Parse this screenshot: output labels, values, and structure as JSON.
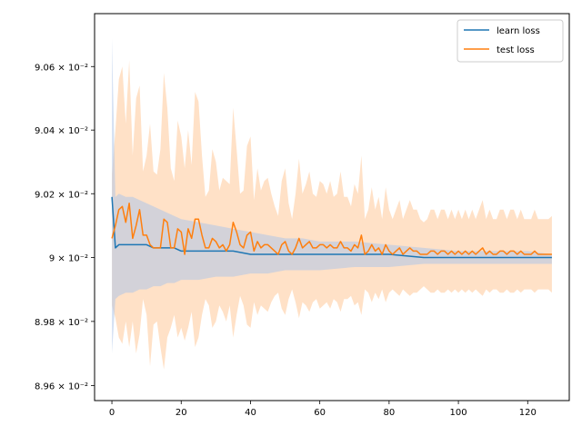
{
  "chart_data": {
    "type": "line",
    "title": "",
    "xlabel": "",
    "ylabel": "",
    "xlim": [
      -5,
      132
    ],
    "ylim": [
      0.089553,
      0.090767
    ],
    "y_scale": "log",
    "grid": false,
    "legend_position": "top-right",
    "x_ticks": [
      0,
      20,
      40,
      60,
      80,
      100,
      120
    ],
    "x_tick_labels": [
      "0",
      "20",
      "40",
      "60",
      "80",
      "100",
      "120"
    ],
    "y_ticks": [
      0.0896,
      0.0898,
      0.09,
      0.0902,
      0.0904,
      0.0906
    ],
    "y_tick_labels": [
      "8.96 × 10⁻²",
      "8.98 × 10⁻²",
      "9 × 10⁻²",
      "9.02 × 10⁻²",
      "9.04 × 10⁻²",
      "9.06 × 10⁻²"
    ],
    "series": [
      {
        "name": "learn loss",
        "color": "#1f77b4",
        "band_color": "#aec7e8",
        "x": [
          0,
          1,
          2,
          4,
          6,
          8,
          10,
          12,
          14,
          16,
          18,
          20,
          25,
          30,
          35,
          40,
          45,
          50,
          55,
          60,
          70,
          80,
          90,
          100,
          110,
          120,
          127
        ],
        "y": [
          0.09019,
          0.09003,
          0.09004,
          0.09004,
          0.09004,
          0.09004,
          0.09004,
          0.09003,
          0.09003,
          0.09003,
          0.09003,
          0.09002,
          0.09002,
          0.09002,
          0.09002,
          0.09001,
          0.09001,
          0.09001,
          0.09001,
          0.09001,
          0.09001,
          0.09001,
          0.09,
          0.09,
          0.09,
          0.09,
          0.09
        ],
        "lower": [
          0.0897,
          0.08987,
          0.08988,
          0.08989,
          0.08989,
          0.0899,
          0.0899,
          0.08991,
          0.08991,
          0.08992,
          0.08992,
          0.08993,
          0.08993,
          0.08994,
          0.08994,
          0.08995,
          0.08995,
          0.08996,
          0.08996,
          0.08996,
          0.08997,
          0.08997,
          0.08998,
          0.08998,
          0.08998,
          0.08998,
          0.08998
        ],
        "upper": [
          0.09069,
          0.09019,
          0.0902,
          0.09019,
          0.09019,
          0.09018,
          0.09017,
          0.09016,
          0.09015,
          0.09014,
          0.09013,
          0.09012,
          0.09011,
          0.0901,
          0.09009,
          0.09008,
          0.09007,
          0.09006,
          0.09006,
          0.09005,
          0.09005,
          0.09004,
          0.09003,
          0.09002,
          0.09002,
          0.09002,
          0.09001
        ]
      },
      {
        "name": "test loss",
        "color": "#ff7f0e",
        "band_color": "#ffdcbd",
        "x": [
          0,
          1,
          2,
          3,
          4,
          5,
          6,
          7,
          8,
          9,
          10,
          11,
          12,
          13,
          14,
          15,
          16,
          17,
          18,
          19,
          20,
          21,
          22,
          23,
          24,
          25,
          26,
          27,
          28,
          29,
          30,
          31,
          32,
          33,
          34,
          35,
          36,
          37,
          38,
          39,
          40,
          41,
          42,
          43,
          44,
          45,
          46,
          47,
          48,
          49,
          50,
          51,
          52,
          53,
          54,
          55,
          56,
          57,
          58,
          59,
          60,
          61,
          62,
          63,
          64,
          65,
          66,
          67,
          68,
          69,
          70,
          71,
          72,
          73,
          74,
          75,
          76,
          77,
          78,
          79,
          80,
          81,
          82,
          83,
          84,
          85,
          86,
          87,
          88,
          89,
          90,
          91,
          92,
          93,
          94,
          95,
          96,
          97,
          98,
          99,
          100,
          101,
          102,
          103,
          104,
          105,
          106,
          107,
          108,
          109,
          110,
          111,
          112,
          113,
          114,
          115,
          116,
          117,
          118,
          119,
          120,
          121,
          122,
          123,
          124,
          125,
          126,
          127
        ],
        "y": [
          0.09006,
          0.0901,
          0.09015,
          0.09016,
          0.09011,
          0.09017,
          0.09006,
          0.0901,
          0.09015,
          0.09007,
          0.09007,
          0.09004,
          0.09003,
          0.09003,
          0.09003,
          0.09012,
          0.09011,
          0.09003,
          0.09003,
          0.09009,
          0.09008,
          0.09001,
          0.09009,
          0.09006,
          0.09012,
          0.09012,
          0.09007,
          0.09003,
          0.09003,
          0.09006,
          0.09005,
          0.09003,
          0.09004,
          0.09002,
          0.09004,
          0.09011,
          0.09008,
          0.09004,
          0.09003,
          0.09007,
          0.09008,
          0.09002,
          0.09005,
          0.09003,
          0.09004,
          0.09004,
          0.09003,
          0.09002,
          0.09001,
          0.09004,
          0.09005,
          0.09002,
          0.09001,
          0.09003,
          0.09006,
          0.09003,
          0.09004,
          0.09005,
          0.09003,
          0.09003,
          0.09004,
          0.09004,
          0.09003,
          0.09004,
          0.09003,
          0.09003,
          0.09005,
          0.09003,
          0.09003,
          0.09002,
          0.09004,
          0.09003,
          0.09007,
          0.09001,
          0.09002,
          0.09004,
          0.09002,
          0.09003,
          0.09001,
          0.09004,
          0.09002,
          0.09001,
          0.09002,
          0.09003,
          0.09001,
          0.09002,
          0.09003,
          0.09002,
          0.09002,
          0.09001,
          0.09001,
          0.09001,
          0.09002,
          0.09002,
          0.09001,
          0.09002,
          0.09002,
          0.09001,
          0.09002,
          0.09001,
          0.09002,
          0.09001,
          0.09002,
          0.09001,
          0.09002,
          0.09001,
          0.09002,
          0.09003,
          0.09001,
          0.09002,
          0.09001,
          0.09001,
          0.09002,
          0.09002,
          0.09001,
          0.09002,
          0.09002,
          0.09001,
          0.09002,
          0.09001,
          0.09001,
          0.09001,
          0.09002,
          0.09001,
          0.09001,
          0.09001,
          0.09001,
          0.09001
        ],
        "lower": [
          0.08985,
          0.08981,
          0.08975,
          0.08973,
          0.0898,
          0.08972,
          0.0898,
          0.0897,
          0.08976,
          0.08987,
          0.08982,
          0.08966,
          0.08979,
          0.0898,
          0.08972,
          0.08965,
          0.08975,
          0.08978,
          0.08982,
          0.08975,
          0.08978,
          0.08974,
          0.08978,
          0.08983,
          0.08972,
          0.08975,
          0.08982,
          0.08987,
          0.08985,
          0.08978,
          0.0898,
          0.08985,
          0.08983,
          0.0898,
          0.08985,
          0.08975,
          0.08982,
          0.08988,
          0.08985,
          0.08979,
          0.08978,
          0.08986,
          0.08982,
          0.08985,
          0.08984,
          0.08983,
          0.08986,
          0.08988,
          0.08989,
          0.08984,
          0.08982,
          0.08987,
          0.0899,
          0.08986,
          0.08981,
          0.08986,
          0.08985,
          0.08983,
          0.08986,
          0.08987,
          0.08984,
          0.08985,
          0.08986,
          0.08984,
          0.08987,
          0.08986,
          0.08983,
          0.08987,
          0.08987,
          0.08988,
          0.08985,
          0.08986,
          0.08982,
          0.0899,
          0.08989,
          0.08986,
          0.08989,
          0.08987,
          0.0899,
          0.08986,
          0.08989,
          0.0899,
          0.08989,
          0.08988,
          0.0899,
          0.08989,
          0.08988,
          0.08989,
          0.08989,
          0.0899,
          0.08991,
          0.0899,
          0.08989,
          0.08989,
          0.0899,
          0.08989,
          0.08989,
          0.0899,
          0.08989,
          0.0899,
          0.08989,
          0.0899,
          0.08989,
          0.0899,
          0.08989,
          0.0899,
          0.08989,
          0.08988,
          0.0899,
          0.08989,
          0.0899,
          0.0899,
          0.08989,
          0.08989,
          0.0899,
          0.08989,
          0.08989,
          0.0899,
          0.08989,
          0.0899,
          0.0899,
          0.0899,
          0.08989,
          0.0899,
          0.0899,
          0.0899,
          0.0899,
          0.08989
        ],
        "upper": [
          0.09026,
          0.0904,
          0.09056,
          0.0906,
          0.09042,
          0.09062,
          0.09032,
          0.0905,
          0.09054,
          0.09027,
          0.09032,
          0.09042,
          0.09027,
          0.09026,
          0.09034,
          0.09058,
          0.09047,
          0.09028,
          0.09024,
          0.09043,
          0.09038,
          0.09028,
          0.0904,
          0.09029,
          0.09052,
          0.09049,
          0.09032,
          0.09019,
          0.09021,
          0.09034,
          0.0903,
          0.09021,
          0.09025,
          0.09024,
          0.09023,
          0.09047,
          0.09034,
          0.0902,
          0.09021,
          0.09035,
          0.09038,
          0.09018,
          0.09028,
          0.09021,
          0.09024,
          0.09025,
          0.0902,
          0.09016,
          0.09013,
          0.09024,
          0.09028,
          0.09017,
          0.09012,
          0.0902,
          0.09031,
          0.0902,
          0.09023,
          0.09027,
          0.0902,
          0.09019,
          0.09024,
          0.09023,
          0.0902,
          0.09024,
          0.09019,
          0.0902,
          0.09027,
          0.09019,
          0.09019,
          0.09016,
          0.09023,
          0.0902,
          0.09032,
          0.09012,
          0.09015,
          0.09022,
          0.09015,
          0.09019,
          0.09012,
          0.09022,
          0.09015,
          0.09012,
          0.09015,
          0.09018,
          0.09012,
          0.09015,
          0.09018,
          0.09015,
          0.09015,
          0.09012,
          0.09011,
          0.09012,
          0.09015,
          0.09015,
          0.09012,
          0.09015,
          0.09015,
          0.09012,
          0.09015,
          0.09012,
          0.09015,
          0.09012,
          0.09015,
          0.09012,
          0.09015,
          0.09012,
          0.09015,
          0.09018,
          0.09012,
          0.09015,
          0.09012,
          0.09012,
          0.09015,
          0.09015,
          0.09012,
          0.09015,
          0.09015,
          0.09012,
          0.09015,
          0.09012,
          0.09012,
          0.09012,
          0.09015,
          0.09012,
          0.09012,
          0.09012,
          0.09012,
          0.09013
        ]
      }
    ]
  }
}
